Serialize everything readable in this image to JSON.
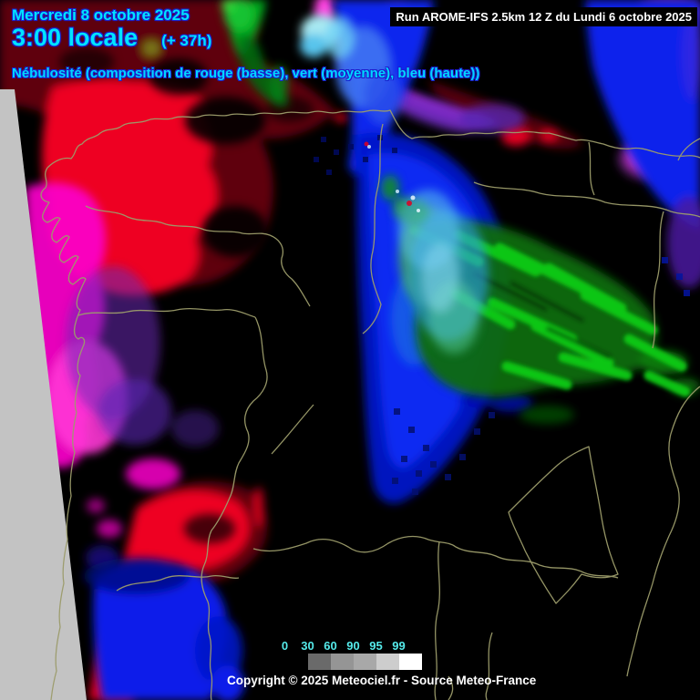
{
  "header": {
    "date_line": "Mercredi 8 octobre 2025",
    "time_line": "3:00 locale",
    "offset": "(+ 37h)",
    "subtitle": "Nébulosité (composition de rouge (basse), vert (moyenne), bleu (haute))",
    "run_info": "Run AROME-IFS 2.5km 12 Z du Lundi 6 octobre 2025"
  },
  "legend": {
    "tick_labels": [
      "0",
      "30",
      "60",
      "90",
      "95",
      "99"
    ],
    "values": [
      0,
      30,
      60,
      90,
      95,
      99
    ],
    "swatches": [
      "#000000",
      "#6a6a6a",
      "#959595",
      "#a8a8a8",
      "#cdcdcd",
      "#ffffff"
    ]
  },
  "footer": {
    "copyright": "Copyright © 2025 Meteociel.fr - Source Meteo-France"
  },
  "colors": {
    "text_cyan": "#00e4ff",
    "text_outline_blue": "#1c1ccc",
    "legend_label_cyan": "#55eaea",
    "run_box_bg": "#000000",
    "run_box_text": "#ffffff",
    "map_background": "#000000",
    "out_of_domain_gray": "#c3c3c3",
    "border_line_olive": "#9c9c6b",
    "cloud_low_red": "#ee0022",
    "cloud_low_dark_red": "#5e0010",
    "cloud_mid_green": "#0acc12",
    "cloud_high_blue": "#0a28ee",
    "cloud_low_high_magenta": "#fb00cb",
    "cloud_mix_purple": "#7a2ed2",
    "cloud_mix_cyan": "#57bdf0"
  }
}
